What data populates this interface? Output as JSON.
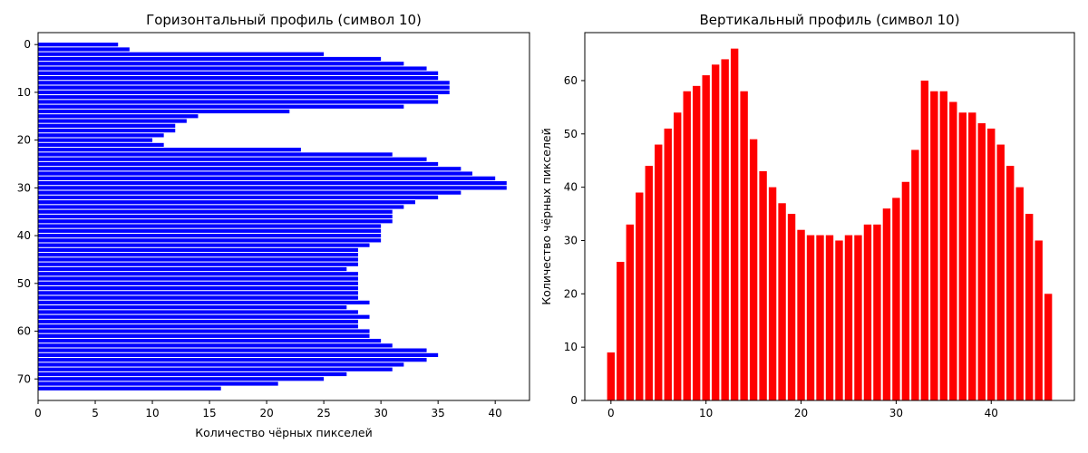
{
  "chart_data": [
    {
      "type": "bar",
      "orientation": "horizontal",
      "title": "Горизонтальный профиль (символ 10)",
      "xlabel": "Количество чёрных пикселей",
      "ylabel": "",
      "color": "#0000ff",
      "xlim": [
        0,
        43
      ],
      "ylim": [
        -2.5,
        74.5
      ],
      "y_inverted": true,
      "xticks": [
        0,
        5,
        10,
        15,
        20,
        25,
        30,
        35,
        40
      ],
      "yticks": [
        0,
        10,
        20,
        30,
        40,
        50,
        60,
        70
      ],
      "grid": false,
      "values": [
        7,
        8,
        25,
        30,
        32,
        34,
        35,
        35,
        36,
        36,
        36,
        35,
        35,
        32,
        22,
        14,
        13,
        12,
        12,
        11,
        10,
        11,
        23,
        31,
        34,
        35,
        37,
        38,
        40,
        41,
        41,
        37,
        35,
        33,
        32,
        31,
        31,
        31,
        30,
        30,
        30,
        30,
        29,
        28,
        28,
        28,
        28,
        27,
        28,
        28,
        28,
        28,
        28,
        28,
        29,
        27,
        28,
        29,
        28,
        28,
        29,
        29,
        30,
        31,
        34,
        35,
        34,
        32,
        31,
        27,
        25,
        21,
        16
      ]
    },
    {
      "type": "bar",
      "orientation": "vertical",
      "title": "Вертикальный профиль (символ 10)",
      "xlabel": "",
      "ylabel": "Количество чёрных пикселей",
      "color": "#ff0000",
      "xlim": [
        -2.75,
        48.75
      ],
      "ylim": [
        0,
        69
      ],
      "xticks": [
        0,
        10,
        20,
        30,
        40
      ],
      "yticks": [
        0,
        10,
        20,
        30,
        40,
        50,
        60
      ],
      "grid": false,
      "values": [
        9,
        26,
        33,
        39,
        44,
        48,
        51,
        54,
        58,
        59,
        61,
        63,
        64,
        66,
        58,
        49,
        43,
        40,
        37,
        35,
        32,
        31,
        31,
        31,
        30,
        31,
        31,
        33,
        33,
        36,
        38,
        41,
        47,
        60,
        58,
        58,
        56,
        54,
        54,
        52,
        51,
        48,
        44,
        40,
        35,
        30,
        20
      ]
    }
  ]
}
